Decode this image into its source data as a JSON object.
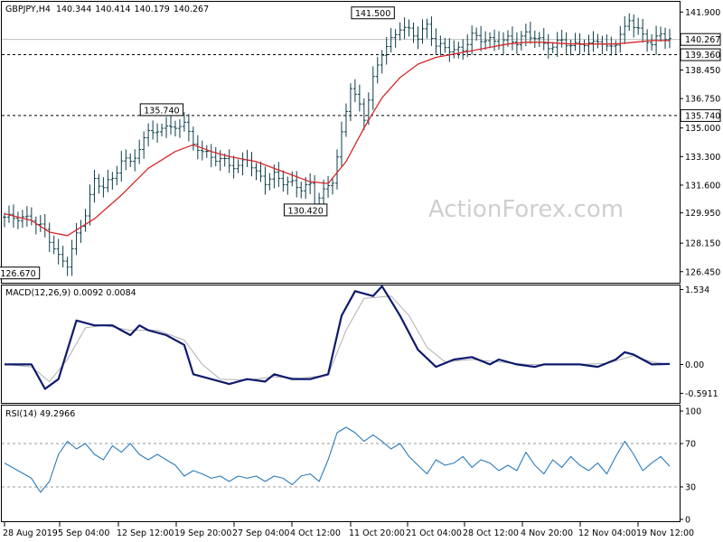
{
  "chart_data": [
    {
      "type": "candlestick",
      "title": "GBPJPY,H4",
      "ohlc": {
        "open": "140.344",
        "high": "140.414",
        "low": "140.179",
        "close": "140.267"
      },
      "watermark": "ActionForex.com",
      "ylim": [
        125.9,
        142.4
      ],
      "y_ticks": [
        "141.900",
        "140.267",
        "139.360",
        "138.450",
        "136.750",
        "135.740",
        "135.000",
        "133.300",
        "131.600",
        "129.950",
        "128.150",
        "126.450"
      ],
      "current_price_label": "140.267",
      "horizontal_levels": [
        {
          "value": 139.36,
          "label": "139.360",
          "style": "dashed"
        },
        {
          "value": 135.74,
          "label": "135.740",
          "style": "dashed"
        }
      ],
      "annotations": [
        "126.670",
        "135.740",
        "130.420",
        "141.500"
      ],
      "annotation_values": [
        126.67,
        135.74,
        130.42,
        141.5
      ],
      "x_ticks": [
        "28 Aug 2019",
        "5 Sep 04:00",
        "12 Sep 12:00",
        "19 Sep 20:00",
        "27 Sep 04:00",
        "4 Oct 12:00",
        "11 Oct 20:00",
        "21 Oct 04:00",
        "28 Oct 12:00",
        "4 Nov 20:00",
        "12 Nov 04:00",
        "19 Nov 12:00"
      ],
      "close_path": [
        [
          0,
          129.7
        ],
        [
          6,
          129.6
        ],
        [
          9,
          128.9
        ],
        [
          12,
          127.3
        ],
        [
          14,
          126.9
        ],
        [
          16,
          128.6
        ],
        [
          18,
          129.9
        ],
        [
          20,
          131.9
        ],
        [
          22,
          131.5
        ],
        [
          24,
          132.0
        ],
        [
          26,
          133.0
        ],
        [
          28,
          133.1
        ],
        [
          30,
          133.6
        ],
        [
          32,
          135.0
        ],
        [
          34,
          134.6
        ],
        [
          36,
          135.3
        ],
        [
          38,
          134.8
        ],
        [
          40,
          135.5
        ],
        [
          42,
          133.9
        ],
        [
          44,
          133.7
        ],
        [
          46,
          133.2
        ],
        [
          48,
          133.2
        ],
        [
          50,
          132.8
        ],
        [
          52,
          132.7
        ],
        [
          54,
          133.2
        ],
        [
          56,
          132.3
        ],
        [
          58,
          131.8
        ],
        [
          60,
          132.2
        ],
        [
          62,
          131.8
        ],
        [
          64,
          131.7
        ],
        [
          66,
          131.4
        ],
        [
          68,
          131.6
        ],
        [
          69,
          130.6
        ],
        [
          71,
          131.2
        ],
        [
          73,
          131.9
        ],
        [
          75,
          134.6
        ],
        [
          77,
          137.5
        ],
        [
          79,
          136.3
        ],
        [
          80,
          135.6
        ],
        [
          82,
          137.9
        ],
        [
          84,
          139.5
        ],
        [
          86,
          140.2
        ],
        [
          88,
          141.0
        ],
        [
          90,
          140.8
        ],
        [
          92,
          140.4
        ],
        [
          94,
          141.1
        ],
        [
          96,
          139.9
        ],
        [
          98,
          139.8
        ],
        [
          100,
          139.6
        ],
        [
          102,
          139.7
        ],
        [
          104,
          140.5
        ],
        [
          106,
          140.3
        ],
        [
          108,
          140.2
        ],
        [
          110,
          140.1
        ],
        [
          112,
          140.3
        ],
        [
          114,
          140.1
        ],
        [
          116,
          140.6
        ],
        [
          118,
          140.4
        ],
        [
          120,
          140.0
        ],
        [
          122,
          139.8
        ],
        [
          124,
          140.3
        ],
        [
          126,
          139.8
        ],
        [
          128,
          140.1
        ],
        [
          130,
          139.9
        ],
        [
          132,
          140.3
        ],
        [
          134,
          139.7
        ],
        [
          136,
          140.1
        ],
        [
          138,
          140.9
        ],
        [
          139,
          141.5
        ],
        [
          140,
          141.1
        ],
        [
          142,
          140.5
        ],
        [
          144,
          140.0
        ],
        [
          146,
          140.6
        ],
        [
          148,
          140.27
        ]
      ],
      "moving_average": [
        [
          0,
          129.9
        ],
        [
          6,
          129.5
        ],
        [
          10,
          128.8
        ],
        [
          14,
          128.6
        ],
        [
          20,
          129.6
        ],
        [
          26,
          131.0
        ],
        [
          32,
          132.6
        ],
        [
          38,
          133.6
        ],
        [
          42,
          134.0
        ],
        [
          46,
          133.6
        ],
        [
          50,
          133.3
        ],
        [
          56,
          133.0
        ],
        [
          62,
          132.4
        ],
        [
          68,
          131.8
        ],
        [
          72,
          131.7
        ],
        [
          76,
          133.0
        ],
        [
          80,
          135.0
        ],
        [
          84,
          136.8
        ],
        [
          88,
          138.0
        ],
        [
          92,
          138.8
        ],
        [
          96,
          139.2
        ],
        [
          100,
          139.4
        ],
        [
          104,
          139.6
        ],
        [
          108,
          139.8
        ],
        [
          112,
          140.0
        ],
        [
          116,
          140.1
        ],
        [
          120,
          140.1
        ],
        [
          126,
          140.0
        ],
        [
          132,
          140.0
        ],
        [
          136,
          140.0
        ],
        [
          140,
          140.1
        ],
        [
          144,
          140.2
        ],
        [
          148,
          140.2
        ]
      ]
    },
    {
      "type": "line",
      "title": "MACD(12,26,9) 0.0092 0.0084",
      "ylim": [
        -0.75,
        1.58
      ],
      "y_ticks": [
        "1.534",
        "0.00",
        "-0.5911"
      ],
      "y_tick_values": [
        1.534,
        0.0,
        -0.5911
      ],
      "series": [
        {
          "role": "macd",
          "points": [
            [
              0,
              0.0
            ],
            [
              6,
              0.0
            ],
            [
              9,
              -0.5
            ],
            [
              12,
              -0.3
            ],
            [
              16,
              0.9
            ],
            [
              20,
              0.8
            ],
            [
              24,
              0.8
            ],
            [
              26,
              0.7
            ],
            [
              28,
              0.6
            ],
            [
              30,
              0.8
            ],
            [
              32,
              0.7
            ],
            [
              36,
              0.6
            ],
            [
              40,
              0.4
            ],
            [
              42,
              -0.2
            ],
            [
              46,
              -0.3
            ],
            [
              50,
              -0.4
            ],
            [
              54,
              -0.3
            ],
            [
              58,
              -0.35
            ],
            [
              60,
              -0.2
            ],
            [
              64,
              -0.3
            ],
            [
              68,
              -0.3
            ],
            [
              72,
              -0.2
            ],
            [
              75,
              1.0
            ],
            [
              78,
              1.5
            ],
            [
              82,
              1.4
            ],
            [
              84,
              1.6
            ],
            [
              86,
              1.3
            ],
            [
              88,
              1.0
            ],
            [
              92,
              0.3
            ],
            [
              96,
              -0.05
            ],
            [
              100,
              0.1
            ],
            [
              104,
              0.15
            ],
            [
              108,
              0.0
            ],
            [
              110,
              0.1
            ],
            [
              114,
              0.0
            ],
            [
              118,
              -0.05
            ],
            [
              120,
              0.0
            ],
            [
              124,
              0.0
            ],
            [
              128,
              0.0
            ],
            [
              132,
              -0.05
            ],
            [
              136,
              0.1
            ],
            [
              138,
              0.25
            ],
            [
              140,
              0.2
            ],
            [
              144,
              0.0
            ],
            [
              148,
              0.01
            ]
          ]
        },
        {
          "role": "signal",
          "points": [
            [
              0,
              0.0
            ],
            [
              6,
              -0.05
            ],
            [
              10,
              -0.35
            ],
            [
              14,
              0.1
            ],
            [
              18,
              0.75
            ],
            [
              22,
              0.8
            ],
            [
              28,
              0.7
            ],
            [
              34,
              0.7
            ],
            [
              40,
              0.5
            ],
            [
              44,
              0.0
            ],
            [
              48,
              -0.3
            ],
            [
              54,
              -0.32
            ],
            [
              60,
              -0.25
            ],
            [
              66,
              -0.28
            ],
            [
              72,
              -0.22
            ],
            [
              76,
              0.7
            ],
            [
              80,
              1.35
            ],
            [
              86,
              1.4
            ],
            [
              90,
              1.0
            ],
            [
              94,
              0.35
            ],
            [
              98,
              0.05
            ],
            [
              104,
              0.1
            ],
            [
              110,
              0.05
            ],
            [
              116,
              0.0
            ],
            [
              122,
              0.0
            ],
            [
              128,
              0.0
            ],
            [
              134,
              0.02
            ],
            [
              140,
              0.18
            ],
            [
              144,
              0.05
            ],
            [
              148,
              0.008
            ]
          ]
        }
      ]
    },
    {
      "type": "line",
      "title": "RSI(14) 49.2966",
      "ylim": [
        0,
        100
      ],
      "y_ticks": [
        "100",
        "70",
        "30",
        "0"
      ],
      "y_tick_values": [
        100,
        70,
        30,
        0
      ],
      "levels": [
        70,
        30
      ],
      "series": [
        {
          "role": "rsi",
          "points": [
            [
              0,
              52
            ],
            [
              3,
              45
            ],
            [
              6,
              38
            ],
            [
              8,
              25
            ],
            [
              10,
              35
            ],
            [
              12,
              60
            ],
            [
              14,
              72
            ],
            [
              16,
              65
            ],
            [
              18,
              70
            ],
            [
              20,
              60
            ],
            [
              22,
              55
            ],
            [
              24,
              68
            ],
            [
              26,
              62
            ],
            [
              28,
              70
            ],
            [
              30,
              60
            ],
            [
              32,
              55
            ],
            [
              34,
              60
            ],
            [
              36,
              55
            ],
            [
              38,
              50
            ],
            [
              40,
              40
            ],
            [
              42,
              45
            ],
            [
              44,
              42
            ],
            [
              46,
              38
            ],
            [
              48,
              40
            ],
            [
              50,
              35
            ],
            [
              52,
              40
            ],
            [
              54,
              38
            ],
            [
              56,
              40
            ],
            [
              58,
              35
            ],
            [
              60,
              40
            ],
            [
              62,
              38
            ],
            [
              64,
              32
            ],
            [
              66,
              40
            ],
            [
              68,
              42
            ],
            [
              70,
              35
            ],
            [
              72,
              55
            ],
            [
              74,
              80
            ],
            [
              76,
              85
            ],
            [
              78,
              80
            ],
            [
              80,
              72
            ],
            [
              82,
              78
            ],
            [
              84,
              72
            ],
            [
              86,
              65
            ],
            [
              88,
              70
            ],
            [
              90,
              58
            ],
            [
              92,
              50
            ],
            [
              94,
              42
            ],
            [
              96,
              55
            ],
            [
              98,
              50
            ],
            [
              100,
              52
            ],
            [
              102,
              58
            ],
            [
              104,
              48
            ],
            [
              106,
              55
            ],
            [
              108,
              52
            ],
            [
              110,
              45
            ],
            [
              112,
              50
            ],
            [
              114,
              45
            ],
            [
              116,
              62
            ],
            [
              118,
              50
            ],
            [
              120,
              42
            ],
            [
              122,
              55
            ],
            [
              124,
              48
            ],
            [
              126,
              58
            ],
            [
              128,
              50
            ],
            [
              130,
              45
            ],
            [
              132,
              52
            ],
            [
              134,
              42
            ],
            [
              136,
              58
            ],
            [
              138,
              72
            ],
            [
              140,
              60
            ],
            [
              142,
              45
            ],
            [
              144,
              52
            ],
            [
              146,
              58
            ],
            [
              148,
              49
            ]
          ]
        }
      ]
    }
  ]
}
